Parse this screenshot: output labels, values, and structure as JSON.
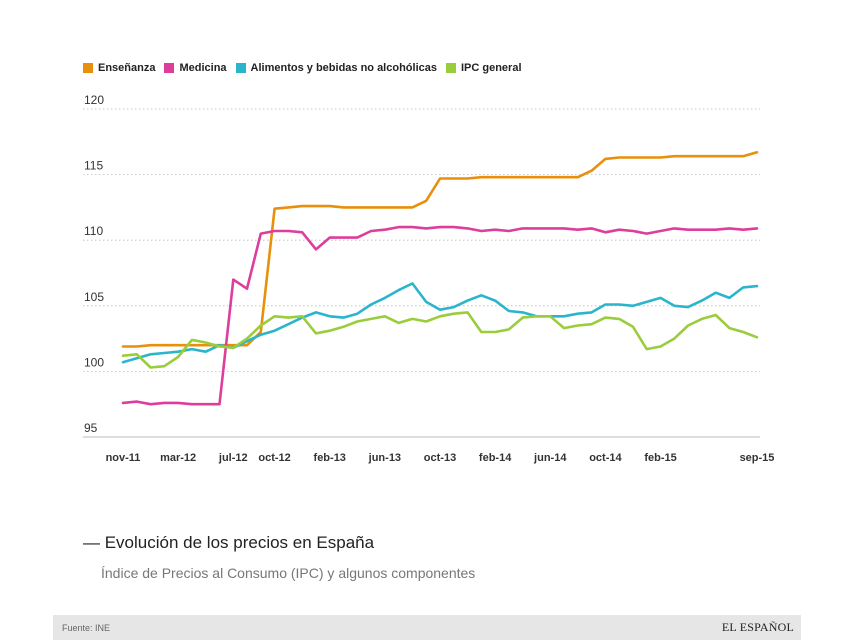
{
  "legend": [
    {
      "label": "Enseñanza",
      "color": "#e8900c"
    },
    {
      "label": "Medicina",
      "color": "#dd3e9c"
    },
    {
      "label": "Alimentos y bebidas no alcohólicas",
      "color": "#2bb5cc"
    },
    {
      "label": "IPC general",
      "color": "#9acd3c"
    }
  ],
  "title": "— Evolución de los precios en España",
  "subtitle": "Índice de Precios al Consumo (IPC) y algunos componentes",
  "footer": {
    "source": "Fuente: INE",
    "brand": "EL ESPAÑOL"
  },
  "chart_data": {
    "type": "line",
    "title": "Evolución de los precios en España",
    "xlabel": "",
    "ylabel": "",
    "ylim": [
      95,
      120
    ],
    "yticks": [
      95,
      100,
      105,
      110,
      115,
      120
    ],
    "grid": true,
    "x": [
      "nov-11",
      "dic-11",
      "ene-12",
      "feb-12",
      "mar-12",
      "abr-12",
      "may-12",
      "jun-12",
      "jul-12",
      "ago-12",
      "sep-12",
      "oct-12",
      "nov-12",
      "dic-12",
      "ene-13",
      "feb-13",
      "mar-13",
      "abr-13",
      "may-13",
      "jun-13",
      "jul-13",
      "ago-13",
      "sep-13",
      "oct-13",
      "nov-13",
      "dic-13",
      "ene-14",
      "feb-14",
      "mar-14",
      "abr-14",
      "may-14",
      "jun-14",
      "jul-14",
      "ago-14",
      "sep-14",
      "oct-14",
      "nov-14",
      "dic-14",
      "ene-15",
      "feb-15",
      "mar-15",
      "abr-15",
      "may-15",
      "jun-15",
      "jul-15",
      "ago-15",
      "sep-15"
    ],
    "xtick_labels": [
      {
        "index": 0,
        "label": "nov-11"
      },
      {
        "index": 4,
        "label": "mar-12"
      },
      {
        "index": 8,
        "label": "jul-12"
      },
      {
        "index": 11,
        "label": "oct-12"
      },
      {
        "index": 15,
        "label": "feb-13"
      },
      {
        "index": 19,
        "label": "jun-13"
      },
      {
        "index": 23,
        "label": "oct-13"
      },
      {
        "index": 27,
        "label": "feb-14"
      },
      {
        "index": 31,
        "label": "jun-14"
      },
      {
        "index": 35,
        "label": "oct-14"
      },
      {
        "index": 39,
        "label": "feb-15"
      },
      {
        "index": 46,
        "label": "sep-15"
      }
    ],
    "series": [
      {
        "name": "Enseñanza",
        "color": "#e8900c",
        "values": [
          101.9,
          101.9,
          102.0,
          102.0,
          102.0,
          102.0,
          102.0,
          102.0,
          102.0,
          102.0,
          103.0,
          112.4,
          112.5,
          112.6,
          112.6,
          112.6,
          112.5,
          112.5,
          112.5,
          112.5,
          112.5,
          112.5,
          113.0,
          114.7,
          114.7,
          114.7,
          114.8,
          114.8,
          114.8,
          114.8,
          114.8,
          114.8,
          114.8,
          114.8,
          115.3,
          116.2,
          116.3,
          116.3,
          116.3,
          116.3,
          116.4,
          116.4,
          116.4,
          116.4,
          116.4,
          116.4,
          116.7
        ]
      },
      {
        "name": "Medicina",
        "color": "#dd3e9c",
        "values": [
          97.6,
          97.7,
          97.5,
          97.6,
          97.6,
          97.5,
          97.5,
          97.5,
          107.0,
          106.3,
          110.5,
          110.7,
          110.7,
          110.6,
          109.3,
          110.2,
          110.2,
          110.2,
          110.7,
          110.8,
          111.0,
          111.0,
          110.9,
          111.0,
          111.0,
          110.9,
          110.7,
          110.8,
          110.7,
          110.9,
          110.9,
          110.9,
          110.9,
          110.8,
          110.9,
          110.6,
          110.8,
          110.7,
          110.5,
          110.7,
          110.9,
          110.8,
          110.8,
          110.8,
          110.9,
          110.8,
          110.9
        ]
      },
      {
        "name": "Alimentos y bebidas no alcohólicas",
        "color": "#2bb5cc",
        "values": [
          100.7,
          101.0,
          101.3,
          101.4,
          101.5,
          101.7,
          101.5,
          102.0,
          101.8,
          102.3,
          102.8,
          103.1,
          103.6,
          104.1,
          104.5,
          104.2,
          104.1,
          104.4,
          105.1,
          105.6,
          106.2,
          106.7,
          105.3,
          104.7,
          104.9,
          105.4,
          105.8,
          105.4,
          104.6,
          104.5,
          104.2,
          104.2,
          104.2,
          104.4,
          104.5,
          105.1,
          105.1,
          105.0,
          105.3,
          105.6,
          105.0,
          104.9,
          105.4,
          106.0,
          105.6,
          106.4,
          106.5
        ]
      },
      {
        "name": "IPC general",
        "color": "#9acd3c",
        "values": [
          101.2,
          101.3,
          100.3,
          100.4,
          101.1,
          102.4,
          102.2,
          101.9,
          101.8,
          102.5,
          103.5,
          104.2,
          104.1,
          104.2,
          102.9,
          103.1,
          103.4,
          103.8,
          104.0,
          104.2,
          103.7,
          104.0,
          103.8,
          104.2,
          104.4,
          104.5,
          103.0,
          103.0,
          103.2,
          104.1,
          104.2,
          104.2,
          103.3,
          103.5,
          103.6,
          104.1,
          104.0,
          103.4,
          101.7,
          101.9,
          102.5,
          103.5,
          104.0,
          104.3,
          103.3,
          103.0,
          102.6
        ]
      }
    ]
  }
}
